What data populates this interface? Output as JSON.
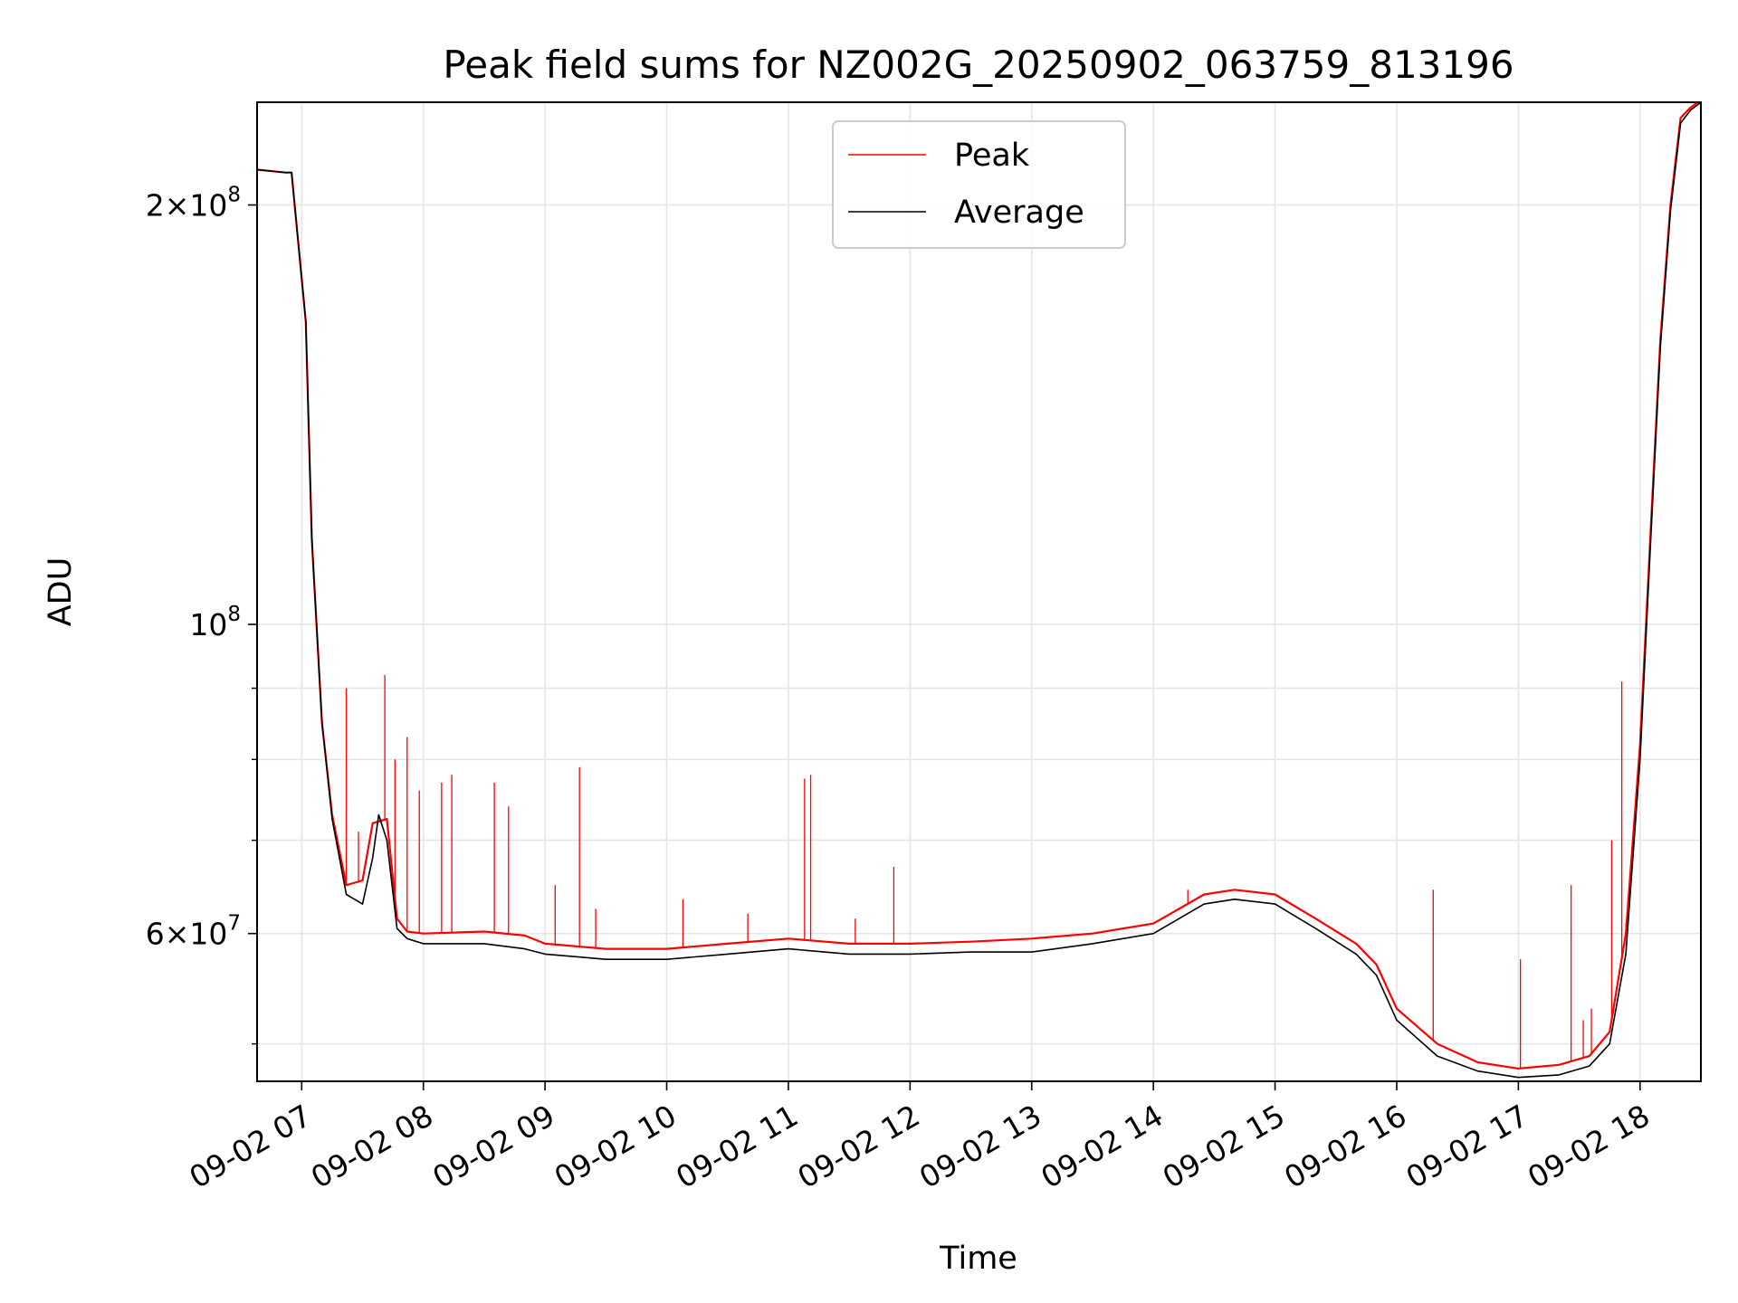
{
  "chart_data": {
    "type": "line",
    "title": "Peak field sums for NZ002G_20250902_063759_813196",
    "xlabel": "Time",
    "ylabel": "ADU",
    "yscale": "log",
    "ylim": [
      47000000,
      237000000
    ],
    "xlim": [
      "2025-09-02 06:38",
      "2025-09-02 18:30"
    ],
    "grid": true,
    "legend_position": "top-center",
    "x_ticks": [
      {
        "t": "2025-09-02 07:00",
        "label": "09-02 07"
      },
      {
        "t": "2025-09-02 08:00",
        "label": "09-02 08"
      },
      {
        "t": "2025-09-02 09:00",
        "label": "09-02 09"
      },
      {
        "t": "2025-09-02 10:00",
        "label": "09-02 10"
      },
      {
        "t": "2025-09-02 11:00",
        "label": "09-02 11"
      },
      {
        "t": "2025-09-02 12:00",
        "label": "09-02 12"
      },
      {
        "t": "2025-09-02 13:00",
        "label": "09-02 13"
      },
      {
        "t": "2025-09-02 14:00",
        "label": "09-02 14"
      },
      {
        "t": "2025-09-02 15:00",
        "label": "09-02 15"
      },
      {
        "t": "2025-09-02 16:00",
        "label": "09-02 16"
      },
      {
        "t": "2025-09-02 17:00",
        "label": "09-02 17"
      },
      {
        "t": "2025-09-02 18:00",
        "label": "09-02 18"
      }
    ],
    "y_major_ticks": [
      {
        "value": 60000000,
        "mantissa": "6",
        "exponent": "7"
      },
      {
        "value": 100000000,
        "mantissa": "",
        "exponent": "8"
      },
      {
        "value": 200000000,
        "mantissa": "2",
        "exponent": "8"
      }
    ],
    "y_minor_ticks": [
      50000000,
      70000000,
      80000000,
      90000000
    ],
    "series": [
      {
        "name": "Peak",
        "color": "#ff0000",
        "x": [
          "2025-09-02 06:38",
          "2025-09-02 06:52",
          "2025-09-02 06:55",
          "2025-09-02 07:02",
          "2025-09-02 07:05",
          "2025-09-02 07:10",
          "2025-09-02 07:15",
          "2025-09-02 07:22",
          "2025-09-02 07:30",
          "2025-09-02 07:35",
          "2025-09-02 07:42",
          "2025-09-02 07:47",
          "2025-09-02 07:52",
          "2025-09-02 08:00",
          "2025-09-02 08:30",
          "2025-09-02 08:50",
          "2025-09-02 09:00",
          "2025-09-02 09:30",
          "2025-09-02 10:00",
          "2025-09-02 10:30",
          "2025-09-02 11:00",
          "2025-09-02 11:30",
          "2025-09-02 12:00",
          "2025-09-02 12:30",
          "2025-09-02 13:00",
          "2025-09-02 13:30",
          "2025-09-02 14:00",
          "2025-09-02 14:25",
          "2025-09-02 14:40",
          "2025-09-02 15:00",
          "2025-09-02 15:20",
          "2025-09-02 15:40",
          "2025-09-02 15:50",
          "2025-09-02 16:00",
          "2025-09-02 16:20",
          "2025-09-02 16:40",
          "2025-09-02 17:00",
          "2025-09-02 17:20",
          "2025-09-02 17:35",
          "2025-09-02 17:45",
          "2025-09-02 17:53",
          "2025-09-02 18:00",
          "2025-09-02 18:05",
          "2025-09-02 18:10",
          "2025-09-02 18:15",
          "2025-09-02 18:20",
          "2025-09-02 18:25",
          "2025-09-02 18:30"
        ],
        "values": [
          212000000,
          211000000,
          211000000,
          165000000,
          115000000,
          85000000,
          73000000,
          65000000,
          65500000,
          72000000,
          72500000,
          61500000,
          60200000,
          60000000,
          60200000,
          59800000,
          59000000,
          58500000,
          58500000,
          59000000,
          59500000,
          59000000,
          59000000,
          59200000,
          59500000,
          60000000,
          61000000,
          64000000,
          64500000,
          64000000,
          61500000,
          59000000,
          57000000,
          53000000,
          50000000,
          48500000,
          48000000,
          48300000,
          49000000,
          51000000,
          60000000,
          82000000,
          115000000,
          160000000,
          200000000,
          231000000,
          235000000,
          238000000
        ],
        "spikes": [
          {
            "t": "2025-09-02 07:22",
            "value": 90000000
          },
          {
            "t": "2025-09-02 07:28",
            "value": 71000000
          },
          {
            "t": "2025-09-02 07:41",
            "value": 92000000
          },
          {
            "t": "2025-09-02 07:46",
            "value": 80000000
          },
          {
            "t": "2025-09-02 07:52",
            "value": 83000000
          },
          {
            "t": "2025-09-02 07:58",
            "value": 76000000
          },
          {
            "t": "2025-09-02 08:09",
            "value": 77000000
          },
          {
            "t": "2025-09-02 08:14",
            "value": 78000000
          },
          {
            "t": "2025-09-02 08:35",
            "value": 77000000
          },
          {
            "t": "2025-09-02 08:42",
            "value": 74000000
          },
          {
            "t": "2025-09-02 09:05",
            "value": 65000000
          },
          {
            "t": "2025-09-02 09:17",
            "value": 79000000
          },
          {
            "t": "2025-09-02 09:25",
            "value": 62500000
          },
          {
            "t": "2025-09-02 10:08",
            "value": 63500000
          },
          {
            "t": "2025-09-02 10:40",
            "value": 62000000
          },
          {
            "t": "2025-09-02 11:08",
            "value": 77500000
          },
          {
            "t": "2025-09-02 11:11",
            "value": 78000000
          },
          {
            "t": "2025-09-02 11:33",
            "value": 61500000
          },
          {
            "t": "2025-09-02 11:52",
            "value": 67000000
          },
          {
            "t": "2025-09-02 14:17",
            "value": 64500000
          },
          {
            "t": "2025-09-02 16:18",
            "value": 64500000
          },
          {
            "t": "2025-09-02 17:01",
            "value": 57500000
          },
          {
            "t": "2025-09-02 17:26",
            "value": 65000000
          },
          {
            "t": "2025-09-02 17:32",
            "value": 52000000
          },
          {
            "t": "2025-09-02 17:36",
            "value": 53000000
          },
          {
            "t": "2025-09-02 17:46",
            "value": 70000000
          },
          {
            "t": "2025-09-02 17:51",
            "value": 91000000
          },
          {
            "t": "2025-09-02 17:53",
            "value": 61000000
          }
        ]
      },
      {
        "name": "Average",
        "color": "#000000",
        "x": [
          "2025-09-02 06:38",
          "2025-09-02 06:52",
          "2025-09-02 06:55",
          "2025-09-02 07:02",
          "2025-09-02 07:05",
          "2025-09-02 07:10",
          "2025-09-02 07:15",
          "2025-09-02 07:22",
          "2025-09-02 07:30",
          "2025-09-02 07:35",
          "2025-09-02 07:38",
          "2025-09-02 07:42",
          "2025-09-02 07:47",
          "2025-09-02 07:52",
          "2025-09-02 08:00",
          "2025-09-02 08:30",
          "2025-09-02 08:50",
          "2025-09-02 09:00",
          "2025-09-02 09:30",
          "2025-09-02 10:00",
          "2025-09-02 10:30",
          "2025-09-02 11:00",
          "2025-09-02 11:30",
          "2025-09-02 12:00",
          "2025-09-02 12:30",
          "2025-09-02 13:00",
          "2025-09-02 13:30",
          "2025-09-02 14:00",
          "2025-09-02 14:25",
          "2025-09-02 14:40",
          "2025-09-02 15:00",
          "2025-09-02 15:20",
          "2025-09-02 15:40",
          "2025-09-02 15:50",
          "2025-09-02 16:00",
          "2025-09-02 16:20",
          "2025-09-02 16:40",
          "2025-09-02 17:00",
          "2025-09-02 17:20",
          "2025-09-02 17:35",
          "2025-09-02 17:45",
          "2025-09-02 17:53",
          "2025-09-02 18:00",
          "2025-09-02 18:05",
          "2025-09-02 18:10",
          "2025-09-02 18:15",
          "2025-09-02 18:20",
          "2025-09-02 18:25",
          "2025-09-02 18:30"
        ],
        "values": [
          212000000,
          211000000,
          211000000,
          165000000,
          115000000,
          85000000,
          72500000,
          64000000,
          63000000,
          68000000,
          73000000,
          70000000,
          60500000,
          59500000,
          59000000,
          59000000,
          58500000,
          58000000,
          57500000,
          57500000,
          58000000,
          58500000,
          58000000,
          58000000,
          58200000,
          58200000,
          59000000,
          60000000,
          63000000,
          63500000,
          63000000,
          60500000,
          58000000,
          56000000,
          52000000,
          49000000,
          47800000,
          47300000,
          47500000,
          48200000,
          50000000,
          58000000,
          80000000,
          113000000,
          158000000,
          198000000,
          229000000,
          234000000,
          237000000
        ]
      }
    ]
  }
}
